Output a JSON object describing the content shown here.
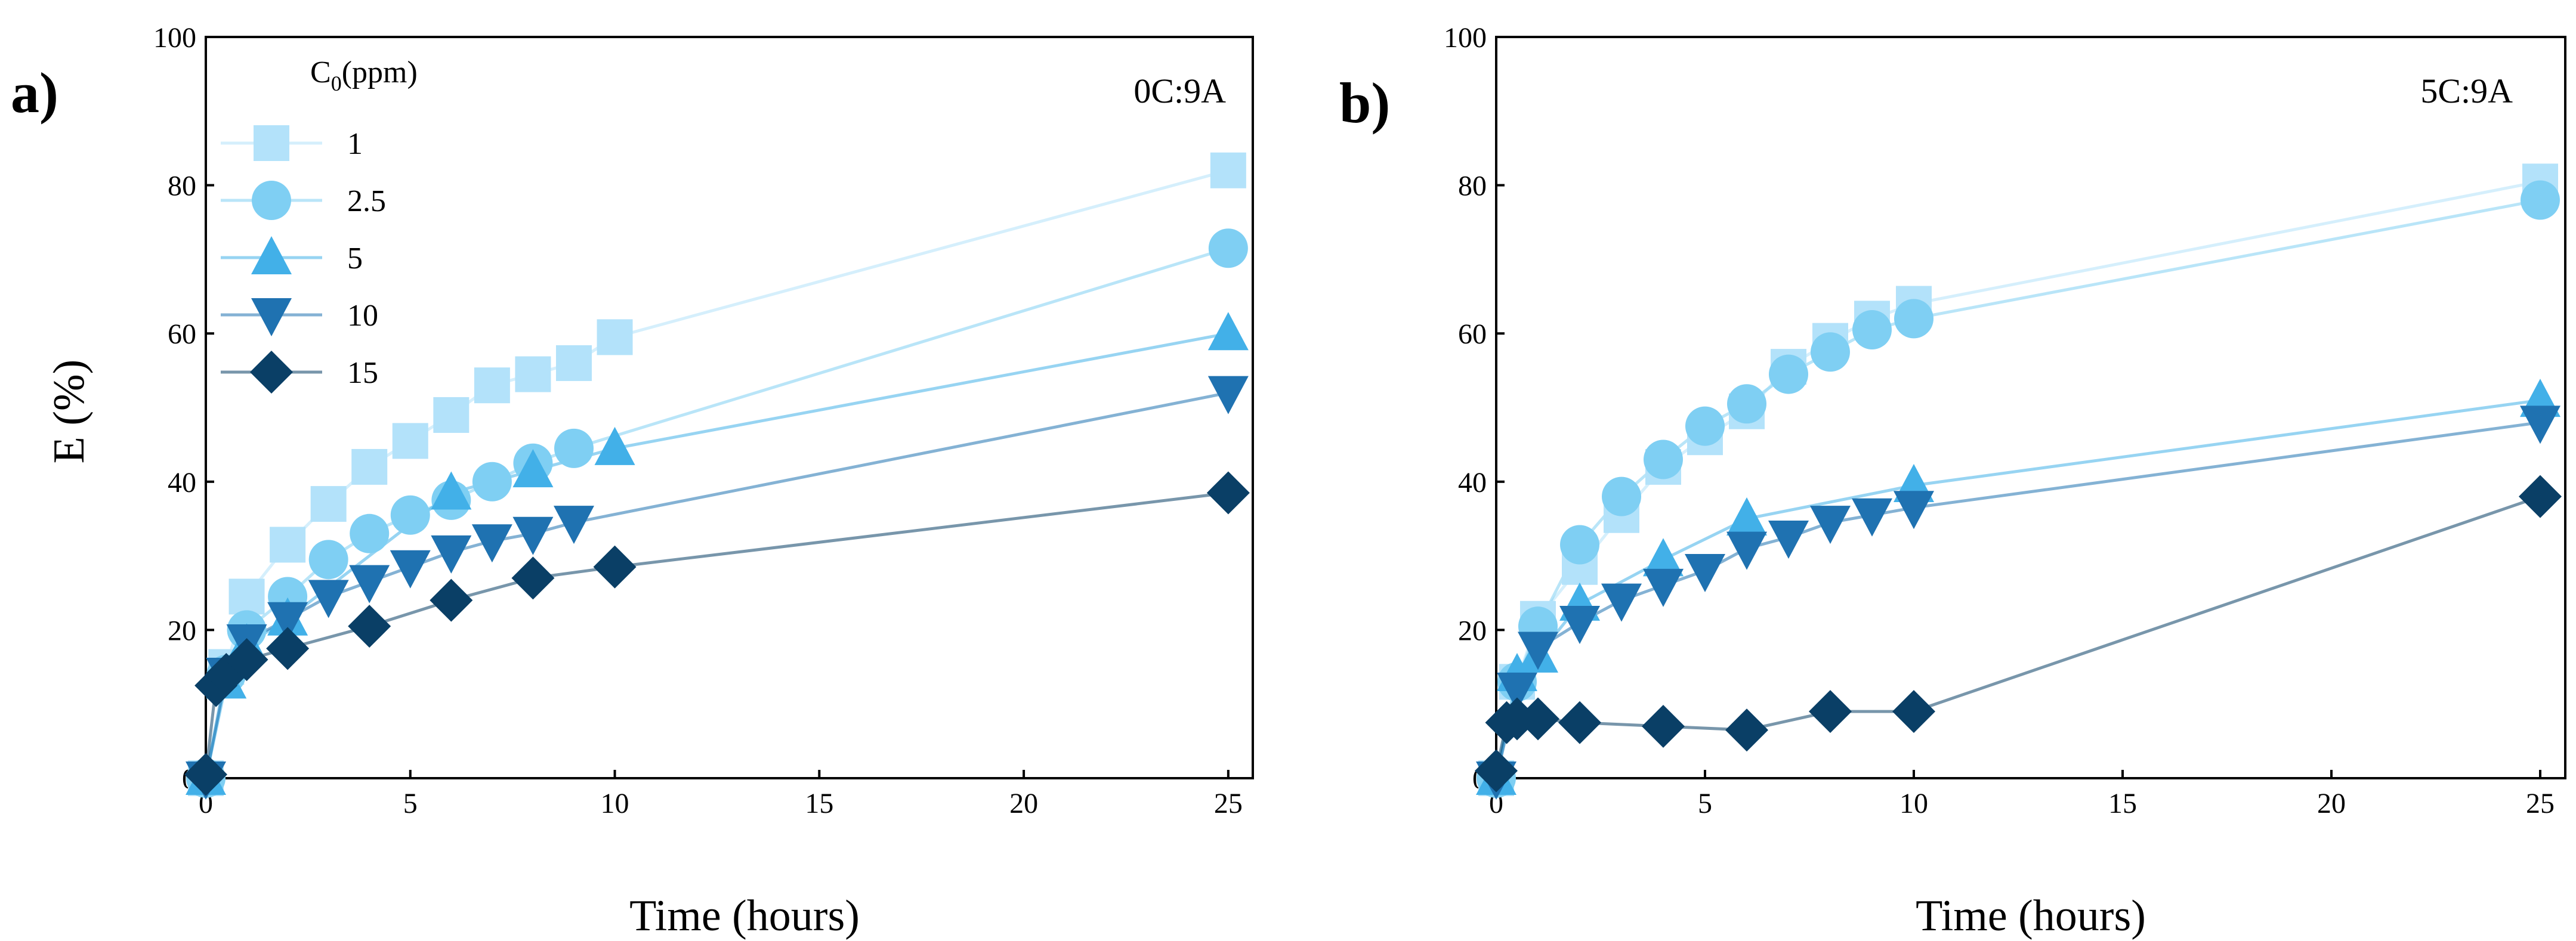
{
  "chart_data": [
    {
      "type": "line",
      "panel_label": "a)",
      "annotation": "0C:9A",
      "xlabel": "Time (hours)",
      "ylabel": "E (%)",
      "xlim": [
        0,
        25.6
      ],
      "ylim": [
        0,
        100
      ],
      "x_ticks": [
        0,
        5,
        10,
        15,
        20,
        25
      ],
      "y_ticks": [
        0,
        20,
        40,
        60,
        80,
        100
      ],
      "grid": false,
      "legend": {
        "title_main": "C",
        "title_sub": "0",
        "title_unit": "(ppm)",
        "placement": "top-left"
      },
      "series": [
        {
          "name": "1",
          "marker": "square",
          "color": "#b3e2fa",
          "x": [
            0,
            0.5,
            1,
            2,
            3,
            4,
            5,
            6,
            7,
            8,
            9,
            10,
            25
          ],
          "y": [
            0,
            15,
            24.5,
            31.5,
            37,
            42,
            45.5,
            49,
            53,
            54.5,
            56,
            59.5,
            82
          ]
        },
        {
          "name": "2.5",
          "marker": "circle",
          "color": "#7fcff3",
          "x": [
            0,
            0.5,
            1,
            2,
            3,
            4,
            5,
            6,
            7,
            8,
            9,
            25
          ],
          "y": [
            0,
            14,
            20,
            24.5,
            29.5,
            33,
            35.5,
            37.5,
            40,
            42.5,
            44.5,
            71.5
          ]
        },
        {
          "name": "5",
          "marker": "triangle-up",
          "color": "#42b0e8",
          "x": [
            0,
            0.5,
            1,
            2,
            6,
            8,
            10,
            25
          ],
          "y": [
            0,
            13,
            18,
            21.5,
            38.5,
            41.5,
            44.5,
            60
          ]
        },
        {
          "name": "10",
          "marker": "triangle-down",
          "color": "#1f72b1",
          "x": [
            0,
            0.5,
            1,
            2,
            3,
            4,
            5,
            6,
            7,
            8,
            9,
            25
          ],
          "y": [
            0,
            14,
            18.5,
            21.5,
            24.5,
            26.5,
            28.5,
            30.5,
            32,
            33,
            34.5,
            52
          ]
        },
        {
          "name": "15",
          "marker": "diamond",
          "color": "#0a3f66",
          "x": [
            0,
            0.25,
            0.5,
            1,
            2,
            4,
            6,
            8,
            10,
            25
          ],
          "y": [
            0.5,
            12.5,
            14,
            16,
            17.5,
            20.5,
            24,
            27,
            28.5,
            38.5
          ]
        }
      ]
    },
    {
      "type": "line",
      "panel_label": "b)",
      "annotation": "5C:9A",
      "xlabel": "Time (hours)",
      "ylabel": "",
      "xlim": [
        0,
        25.6
      ],
      "ylim": [
        0,
        100
      ],
      "x_ticks": [
        0,
        5,
        10,
        15,
        20,
        25
      ],
      "y_ticks": [
        0,
        20,
        40,
        60,
        80,
        100
      ],
      "grid": false,
      "series": [
        {
          "name": "1",
          "marker": "square",
          "color": "#b3e2fa",
          "x": [
            0,
            0.5,
            1,
            2,
            3,
            4,
            5,
            6,
            7,
            8,
            9,
            10,
            25
          ],
          "y": [
            0,
            13,
            21.5,
            28.5,
            35.5,
            42,
            46,
            49.5,
            55.5,
            59,
            62,
            64,
            80.5
          ]
        },
        {
          "name": "2.5",
          "marker": "circle",
          "color": "#7fcff3",
          "x": [
            0,
            0.5,
            1,
            2,
            3,
            4,
            5,
            6,
            7,
            8,
            9,
            10,
            25
          ],
          "y": [
            0,
            13,
            20.5,
            31.5,
            38,
            43,
            47.5,
            50.5,
            54.5,
            57.5,
            60.5,
            62,
            78
          ]
        },
        {
          "name": "5",
          "marker": "triangle-up",
          "color": "#42b0e8",
          "x": [
            0,
            0.5,
            1,
            2,
            4,
            6,
            10,
            25
          ],
          "y": [
            0,
            14,
            16.5,
            23.5,
            29.5,
            35,
            39.5,
            51
          ]
        },
        {
          "name": "10",
          "marker": "triangle-down",
          "color": "#1f72b1",
          "x": [
            0,
            0.5,
            1,
            2,
            3,
            4,
            5,
            6,
            7,
            8,
            9,
            10,
            25
          ],
          "y": [
            0,
            12,
            17.5,
            21,
            24,
            26,
            28,
            31,
            32.5,
            34.5,
            35.5,
            36.5,
            48
          ]
        },
        {
          "name": "15",
          "marker": "diamond",
          "color": "#0a3f66",
          "x": [
            0,
            0.25,
            0.5,
            1,
            2,
            4,
            6,
            8,
            10,
            25
          ],
          "y": [
            1,
            7.5,
            8,
            8,
            7.5,
            7,
            6.5,
            9,
            9,
            38
          ]
        }
      ]
    }
  ]
}
